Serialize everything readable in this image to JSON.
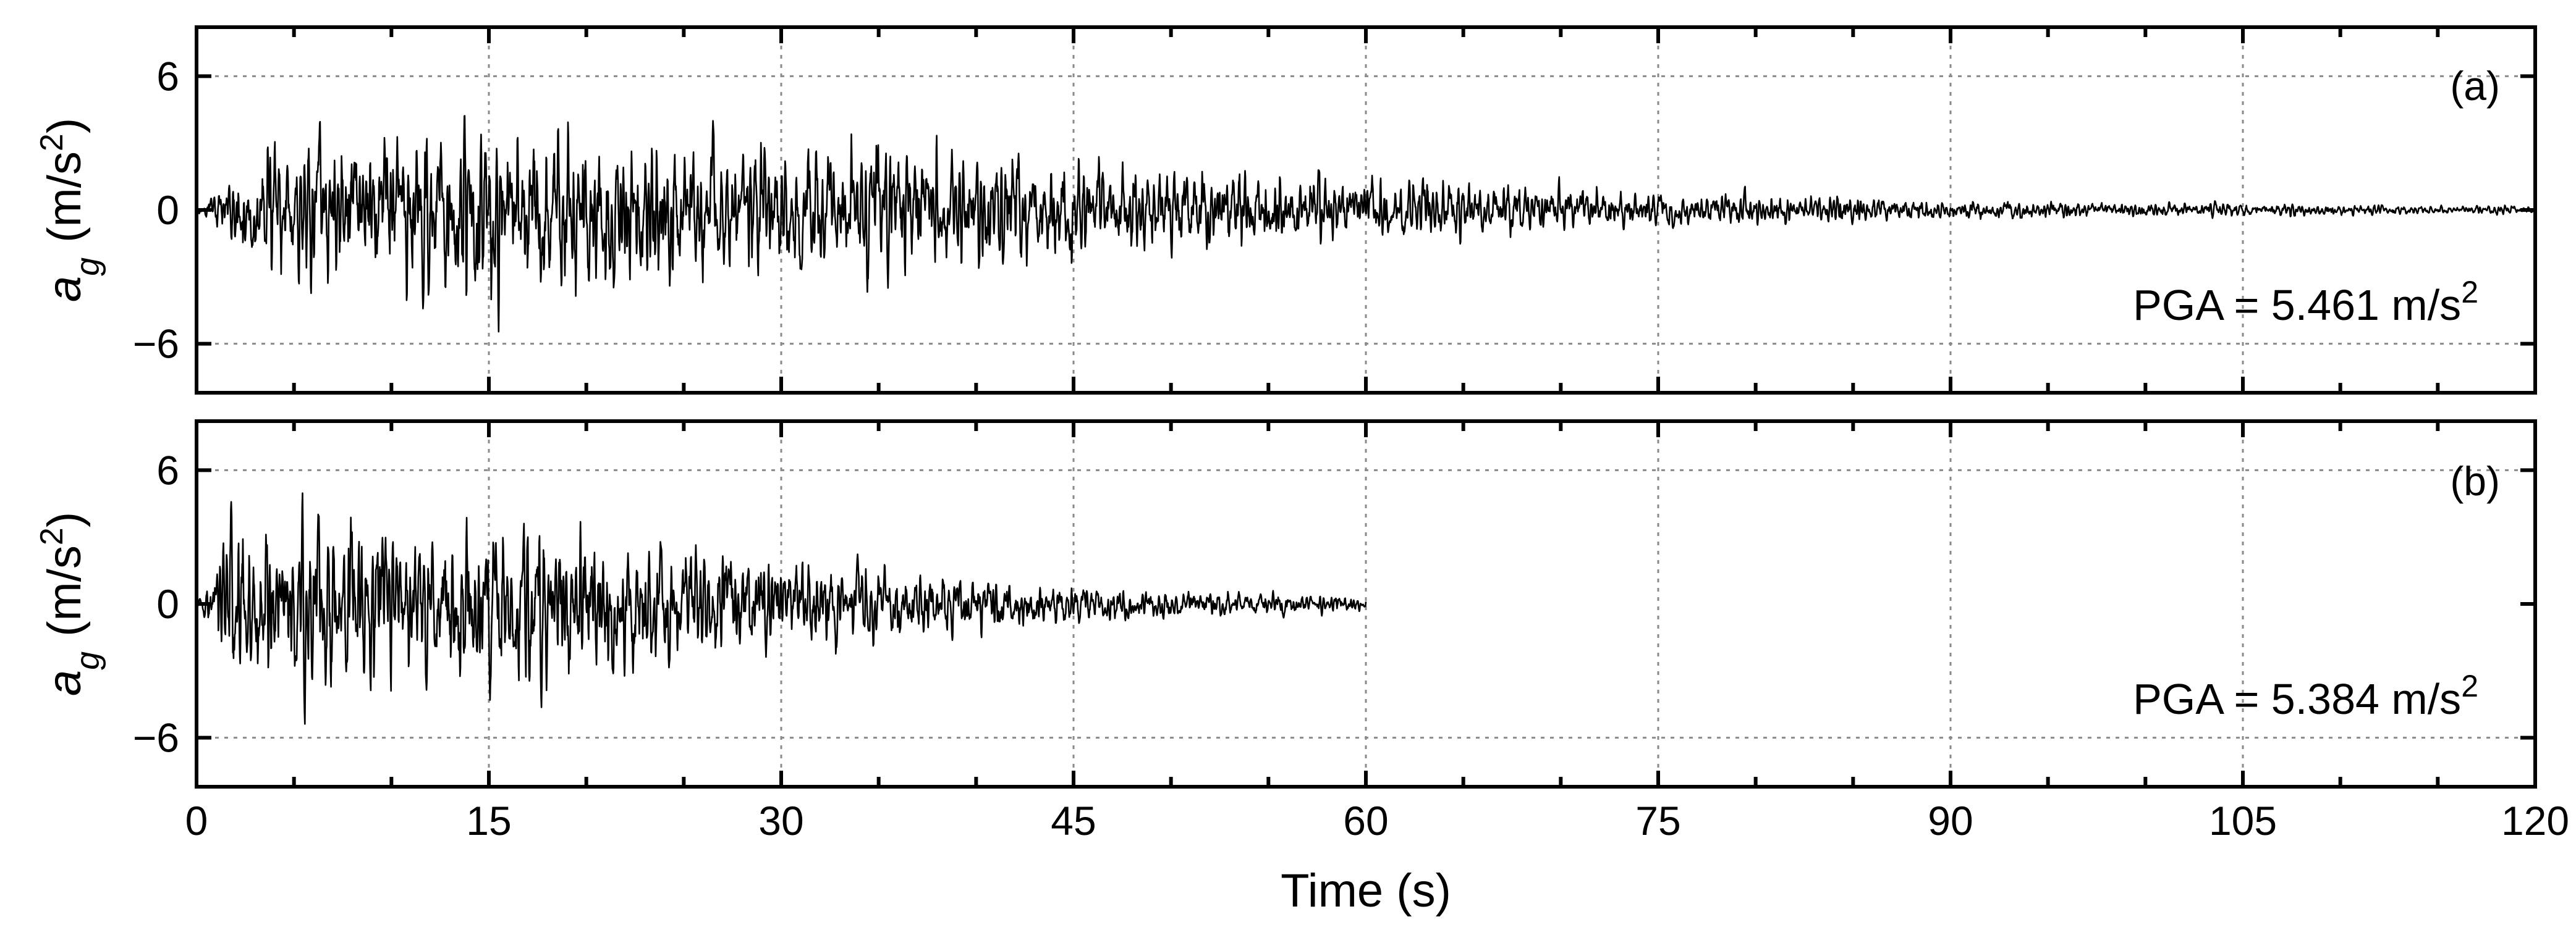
{
  "chart_data": [
    {
      "type": "line",
      "panel_label": "(a)",
      "ylabel": "a",
      "ylabel_sub": "g",
      "ylabel_unit": "(m/s",
      "ylabel_unit_exp": "2",
      "ylabel_unit_close": ")",
      "yticks": [
        "6",
        "0",
        "−6"
      ],
      "ytick_values": [
        6,
        0,
        -6
      ],
      "ylim": [
        -8.2,
        8.2
      ],
      "xlim": [
        0,
        120
      ],
      "annotation": {
        "text": "PGA = 5.461 m/s",
        "exp": "2"
      },
      "grid": true,
      "series": [
        {
          "duration_s": 120,
          "peak_abs": 5.461,
          "envelope": {
            "t": [
              0,
              1,
              3,
              6,
              13,
              28,
              36,
              45,
              55,
              60,
              75,
              90,
              105,
              120
            ],
            "amp": [
              0.15,
              0.6,
              2.8,
              3.3,
              3.6,
              3.0,
              2.6,
              2.1,
              1.5,
              1.2,
              0.75,
              0.42,
              0.26,
              0.16
            ]
          }
        }
      ]
    },
    {
      "type": "line",
      "panel_label": "(b)",
      "ylabel": "a",
      "ylabel_sub": "g",
      "ylabel_unit": "(m/s",
      "ylabel_unit_exp": "2",
      "ylabel_unit_close": ")",
      "yticks": [
        "6",
        "0",
        "−6"
      ],
      "ytick_values": [
        6,
        0,
        -6
      ],
      "ylim": [
        -8.2,
        8.2
      ],
      "xlim": [
        0,
        120
      ],
      "annotation": {
        "text": "PGA = 5.384 m/s",
        "exp": "2"
      },
      "grid": true,
      "series": [
        {
          "duration_s": 60,
          "peak_abs": 5.384,
          "envelope": {
            "t": [
              0,
              0.5,
              1.5,
              6,
              17,
              30,
              37,
              45,
              52,
              60
            ],
            "amp": [
              0.1,
              0.5,
              2.8,
              3.4,
              3.3,
              1.9,
              1.3,
              0.75,
              0.5,
              0.3
            ]
          }
        }
      ]
    }
  ],
  "x_axis": {
    "label": "Time (s)",
    "ticks": [
      "0",
      "15",
      "30",
      "45",
      "60",
      "75",
      "90",
      "105",
      "120"
    ],
    "tick_values": [
      0,
      15,
      30,
      45,
      60,
      75,
      90,
      105,
      120
    ]
  }
}
